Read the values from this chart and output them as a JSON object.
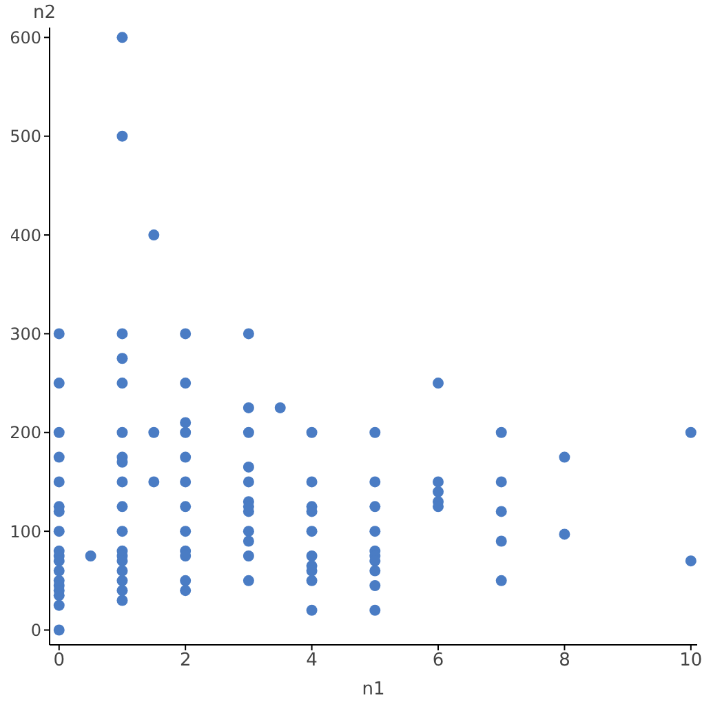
{
  "chart_data": {
    "type": "scatter",
    "xlabel": "n1",
    "ylabel": "n2",
    "xlim": [
      -0.15,
      10.1
    ],
    "ylim": [
      -15,
      610
    ],
    "xticks": [
      0,
      2,
      4,
      6,
      8,
      10
    ],
    "yticks": [
      0,
      100,
      200,
      300,
      400,
      500,
      600
    ],
    "grid": false,
    "marker": "circle",
    "series": [
      {
        "color": "#4a7cc4",
        "x": [
          0,
          0,
          0,
          0,
          0,
          0,
          0,
          0,
          0,
          0,
          0,
          0,
          0,
          0,
          0,
          0,
          0,
          0,
          0.5,
          1,
          1,
          1,
          1,
          1,
          1,
          1,
          1,
          1,
          1,
          1,
          1,
          1,
          1,
          1,
          1,
          1,
          1,
          1.5,
          1.5,
          1.5,
          2,
          2,
          2,
          2,
          2,
          2,
          2,
          2,
          2,
          2,
          2,
          2,
          3,
          3,
          3,
          3,
          3,
          3,
          3,
          3,
          3,
          3,
          3,
          3,
          3.5,
          4,
          4,
          4,
          4,
          4,
          4,
          4,
          4,
          4,
          4,
          5,
          5,
          5,
          5,
          5,
          5,
          5,
          5,
          5,
          5,
          6,
          6,
          6,
          6,
          6,
          7,
          7,
          7,
          7,
          7,
          8,
          8,
          10,
          10
        ],
        "values": [
          300,
          250,
          200,
          175,
          150,
          125,
          120,
          100,
          80,
          75,
          70,
          60,
          50,
          45,
          40,
          35,
          25,
          0,
          75,
          600,
          500,
          300,
          275,
          250,
          200,
          175,
          170,
          150,
          125,
          100,
          80,
          75,
          70,
          60,
          50,
          40,
          30,
          400,
          200,
          150,
          300,
          250,
          210,
          200,
          175,
          150,
          125,
          100,
          80,
          75,
          50,
          40,
          300,
          225,
          200,
          165,
          150,
          130,
          125,
          120,
          100,
          90,
          75,
          50,
          225,
          200,
          150,
          125,
          120,
          100,
          75,
          65,
          60,
          50,
          20,
          200,
          150,
          125,
          100,
          80,
          75,
          70,
          60,
          45,
          20,
          250,
          150,
          140,
          130,
          125,
          200,
          150,
          120,
          90,
          50,
          175,
          97,
          200,
          70
        ]
      }
    ]
  }
}
